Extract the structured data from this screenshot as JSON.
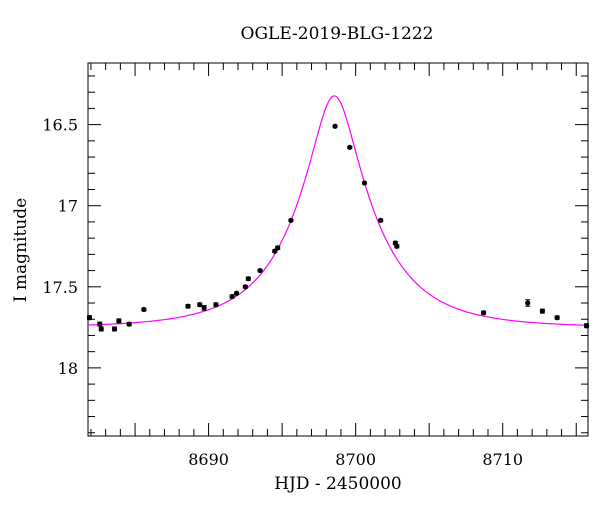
{
  "chart_data": {
    "type": "scatter",
    "title": "OGLE-2019-BLG-1222",
    "xlabel": "HJD - 2450000",
    "ylabel": "I magnitude",
    "xlim": [
      8681.8,
      8715.8
    ],
    "ylim": [
      18.42,
      16.12
    ],
    "y_inverted": true,
    "x_ticks": [
      8690,
      8700,
      8710
    ],
    "x_tick_labels": [
      "8690",
      "8700",
      "8710"
    ],
    "y_ticks": [
      16.5,
      17,
      17.5,
      18
    ],
    "y_tick_labels": [
      "16.5",
      "17",
      "17.5",
      "18"
    ],
    "grid": false,
    "colors": {
      "model": "#ff00ff",
      "points": "#000000",
      "axes": "#000000"
    },
    "model": {
      "t0": 8698.55,
      "u0": 0.276,
      "tE": 5.3,
      "baseline_mag": 17.751
    },
    "series": [
      {
        "points": [
          {
            "x": 8681.9,
            "y": 17.69,
            "err": 0.012
          },
          {
            "x": 8682.6,
            "y": 17.73,
            "err": 0.012
          },
          {
            "x": 8682.7,
            "y": 17.76,
            "err": 0.012
          },
          {
            "x": 8683.6,
            "y": 17.76,
            "err": 0.012
          },
          {
            "x": 8683.9,
            "y": 17.71,
            "err": 0.012
          },
          {
            "x": 8684.6,
            "y": 17.73,
            "err": 0.01
          },
          {
            "x": 8685.6,
            "y": 17.64,
            "err": 0.008
          },
          {
            "x": 8688.6,
            "y": 17.62,
            "err": 0.01
          },
          {
            "x": 8689.4,
            "y": 17.61,
            "err": 0.01
          },
          {
            "x": 8689.7,
            "y": 17.63,
            "err": 0.014
          },
          {
            "x": 8690.5,
            "y": 17.61,
            "err": 0.01
          },
          {
            "x": 8691.6,
            "y": 17.56,
            "err": 0.01
          },
          {
            "x": 8691.9,
            "y": 17.54,
            "err": 0.008
          },
          {
            "x": 8692.5,
            "y": 17.5,
            "err": 0.008
          },
          {
            "x": 8692.7,
            "y": 17.45,
            "err": 0.01
          },
          {
            "x": 8693.5,
            "y": 17.4,
            "err": 0.008
          },
          {
            "x": 8694.5,
            "y": 17.28,
            "err": 0.008
          },
          {
            "x": 8694.7,
            "y": 17.26,
            "err": 0.01
          },
          {
            "x": 8695.6,
            "y": 17.09,
            "err": 0.006
          },
          {
            "x": 8698.6,
            "y": 16.51,
            "err": 0.005
          },
          {
            "x": 8699.6,
            "y": 16.64,
            "err": 0.006
          },
          {
            "x": 8700.6,
            "y": 16.86,
            "err": 0.006
          },
          {
            "x": 8701.7,
            "y": 17.09,
            "err": 0.008
          },
          {
            "x": 8702.7,
            "y": 17.23,
            "err": 0.01
          },
          {
            "x": 8702.8,
            "y": 17.25,
            "err": 0.01
          },
          {
            "x": 8708.7,
            "y": 17.66,
            "err": 0.01
          },
          {
            "x": 8711.7,
            "y": 17.6,
            "err": 0.02
          },
          {
            "x": 8712.7,
            "y": 17.65,
            "err": 0.012
          },
          {
            "x": 8713.7,
            "y": 17.69,
            "err": 0.01
          },
          {
            "x": 8715.7,
            "y": 17.74,
            "err": 0.012
          }
        ]
      }
    ]
  }
}
